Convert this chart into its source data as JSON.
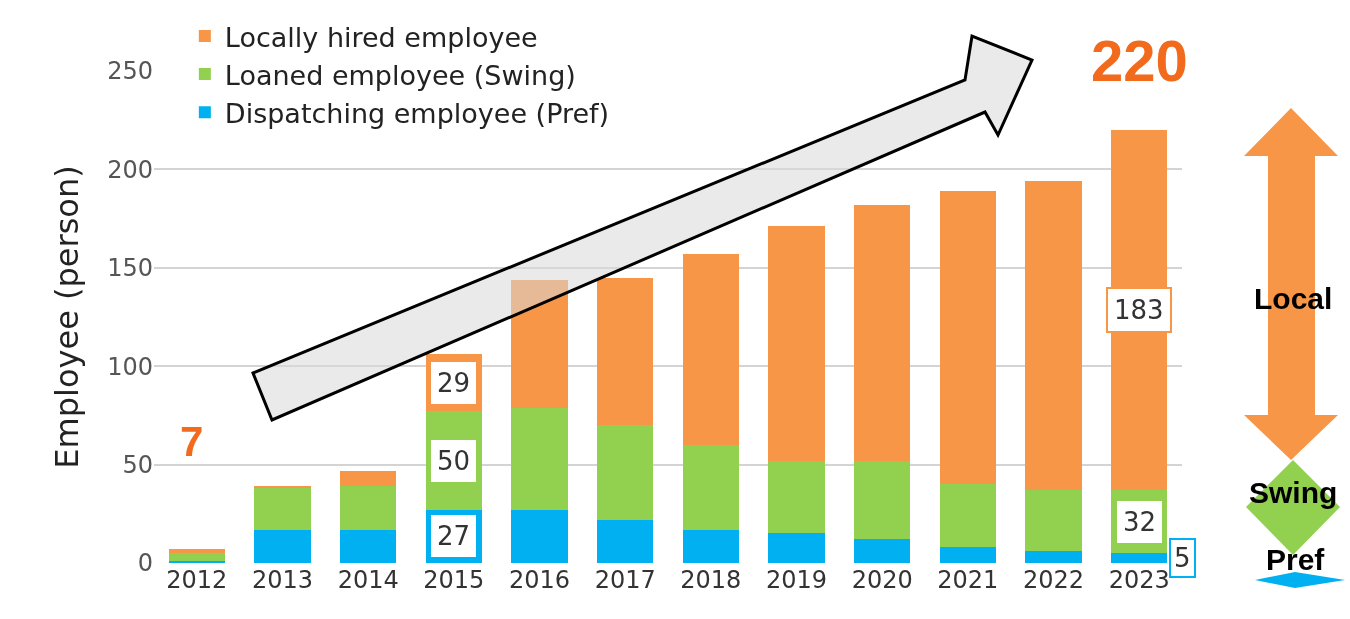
{
  "chart_data": {
    "type": "bar",
    "stacked": true,
    "ylabel": "Employee (person)",
    "categories": [
      "2012",
      "2013",
      "2014",
      "2015",
      "2016",
      "2017",
      "2018",
      "2019",
      "2020",
      "2021",
      "2022",
      "2023"
    ],
    "series": [
      {
        "name": "Dispatching employee (Pref)",
        "color": "#00b0f0",
        "values": [
          1,
          17,
          17,
          27,
          27,
          22,
          17,
          15,
          12,
          8,
          6,
          5
        ],
        "value_labels": [
          null,
          null,
          null,
          "27",
          null,
          null,
          null,
          null,
          null,
          null,
          null,
          "5"
        ]
      },
      {
        "name": "Loaned employee (Swing)",
        "color": "#92d050",
        "values": [
          4,
          21,
          22,
          50,
          52,
          48,
          43,
          37,
          40,
          32,
          31,
          32
        ],
        "value_labels": [
          null,
          null,
          null,
          "50",
          null,
          null,
          null,
          null,
          null,
          null,
          null,
          "32"
        ]
      },
      {
        "name": "Locally hired employee",
        "color": "#f79646",
        "values": [
          2,
          1,
          8,
          29,
          65,
          75,
          97,
          119,
          130,
          149,
          157,
          183
        ],
        "value_labels": [
          null,
          null,
          null,
          "29",
          null,
          null,
          null,
          null,
          null,
          null,
          null,
          "183"
        ]
      }
    ],
    "ylim": [
      0,
      250
    ],
    "yticks": [
      0,
      50,
      100,
      150,
      200,
      250
    ],
    "grid": "y",
    "legend": "top left",
    "annotations": [
      {
        "text": "7",
        "x": "2012",
        "y": 7
      },
      {
        "text": "220",
        "x": "2023",
        "y": 220
      },
      "Local",
      "Swing",
      "Pref"
    ]
  }
}
